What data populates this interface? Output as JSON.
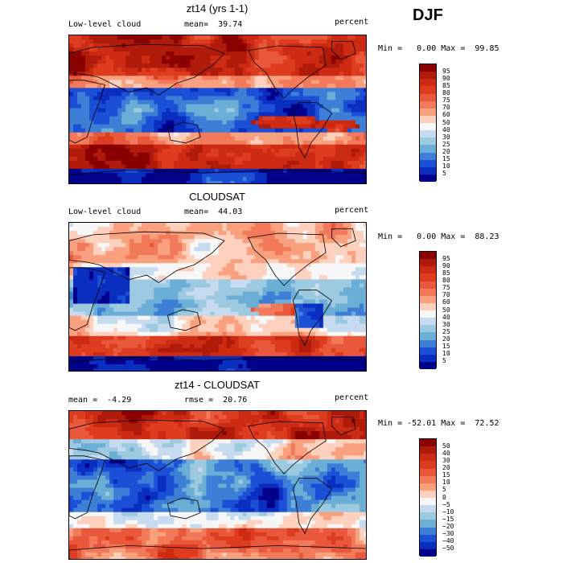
{
  "season": "DJF",
  "panels": [
    {
      "title": "zt14 (yrs 1-1)",
      "left_label": "Low-level cloud",
      "mean_label": "mean=  39.74",
      "right_label": "percent",
      "minmax": "Min =   0.00 Max =  99.85",
      "colorbar_labels": [
        "95",
        "90",
        "85",
        "80",
        "75",
        "70",
        "60",
        "50",
        "40",
        "30",
        "25",
        "20",
        "15",
        "10",
        "5"
      ],
      "colorbar_colors": [
        "#8b0000",
        "#b01a0a",
        "#cc2a12",
        "#dd3c1e",
        "#e9583a",
        "#f2795a",
        "#f9a07f",
        "#fdd1bd",
        "#f7f7f7",
        "#c6dbef",
        "#9ecae1",
        "#6baed6",
        "#3d7ed6",
        "#1a4fd6",
        "#0a2ec0",
        "#00008b"
      ],
      "field": "model"
    },
    {
      "title": "CLOUDSAT",
      "left_label": "Low-level cloud",
      "mean_label": "mean=  44.03",
      "right_label": "percent",
      "minmax": "Min =   0.00 Max =  88.23",
      "colorbar_labels": [
        "95",
        "90",
        "85",
        "80",
        "75",
        "70",
        "60",
        "50",
        "40",
        "30",
        "25",
        "20",
        "15",
        "10",
        "5"
      ],
      "colorbar_colors": [
        "#8b0000",
        "#b01a0a",
        "#cc2a12",
        "#dd3c1e",
        "#e9583a",
        "#f2795a",
        "#f9a07f",
        "#fdd1bd",
        "#f7f7f7",
        "#c6dbef",
        "#9ecae1",
        "#6baed6",
        "#3d7ed6",
        "#1a4fd6",
        "#0a2ec0",
        "#00008b"
      ],
      "field": "obs"
    },
    {
      "title": "zt14 - CLOUDSAT",
      "left_label": "mean =  -4.29",
      "mean_label": "rmse =  20.76",
      "right_label": "percent",
      "minmax": "Min = -52.01 Max =  72.52",
      "colorbar_labels": [
        "50",
        "40",
        "30",
        "20",
        "15",
        "10",
        "5",
        "0",
        "−5",
        "−10",
        "−15",
        "−20",
        "−30",
        "−40",
        "−50"
      ],
      "colorbar_colors": [
        "#8b0000",
        "#b01a0a",
        "#cc2a12",
        "#dd3c1e",
        "#e9583a",
        "#f2795a",
        "#f9a07f",
        "#fdd1bd",
        "#f7f7f7",
        "#c6dbef",
        "#9ecae1",
        "#6baed6",
        "#3d7ed6",
        "#1a4fd6",
        "#0a2ec0",
        "#00008b"
      ],
      "field": "diff"
    }
  ]
}
